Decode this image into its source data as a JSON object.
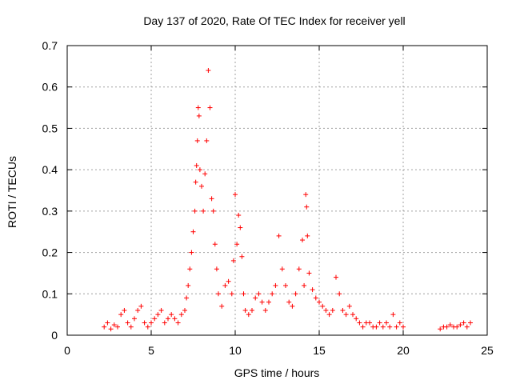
{
  "chart_data": {
    "type": "scatter",
    "title": "Day 137 of 2020, Rate Of TEC Index for receiver yell",
    "xlabel": "GPS time / hours",
    "ylabel": "ROTI / TECUs",
    "xlim": [
      0,
      25
    ],
    "ylim": [
      0,
      0.7
    ],
    "xticks": [
      0,
      5,
      10,
      15,
      20,
      25
    ],
    "yticks": [
      0,
      0.1,
      0.2,
      0.3,
      0.4,
      0.5,
      0.6,
      0.7
    ],
    "grid": true,
    "legend": "none",
    "marker": "+",
    "color": "#ff0000",
    "series": [
      {
        "values": [
          [
            2.2,
            0.02
          ],
          [
            2.4,
            0.03
          ],
          [
            2.6,
            0.015
          ],
          [
            2.8,
            0.025
          ],
          [
            3.0,
            0.02
          ],
          [
            3.2,
            0.05
          ],
          [
            3.4,
            0.06
          ],
          [
            3.6,
            0.03
          ],
          [
            3.8,
            0.02
          ],
          [
            4.0,
            0.04
          ],
          [
            4.2,
            0.06
          ],
          [
            4.4,
            0.07
          ],
          [
            4.6,
            0.03
          ],
          [
            4.8,
            0.02
          ],
          [
            5.0,
            0.03
          ],
          [
            5.2,
            0.04
          ],
          [
            5.4,
            0.05
          ],
          [
            5.6,
            0.06
          ],
          [
            5.8,
            0.03
          ],
          [
            6.0,
            0.04
          ],
          [
            6.2,
            0.05
          ],
          [
            6.4,
            0.04
          ],
          [
            6.6,
            0.03
          ],
          [
            6.8,
            0.05
          ],
          [
            7.0,
            0.06
          ],
          [
            7.1,
            0.09
          ],
          [
            7.2,
            0.12
          ],
          [
            7.3,
            0.16
          ],
          [
            7.4,
            0.2
          ],
          [
            7.5,
            0.25
          ],
          [
            7.6,
            0.3
          ],
          [
            7.65,
            0.37
          ],
          [
            7.7,
            0.41
          ],
          [
            7.75,
            0.47
          ],
          [
            7.8,
            0.55
          ],
          [
            7.85,
            0.53
          ],
          [
            7.9,
            0.4
          ],
          [
            8.0,
            0.36
          ],
          [
            8.1,
            0.3
          ],
          [
            8.2,
            0.39
          ],
          [
            8.3,
            0.47
          ],
          [
            8.4,
            0.64
          ],
          [
            8.5,
            0.55
          ],
          [
            8.6,
            0.33
          ],
          [
            8.7,
            0.3
          ],
          [
            8.8,
            0.22
          ],
          [
            8.9,
            0.16
          ],
          [
            9.0,
            0.1
          ],
          [
            9.2,
            0.07
          ],
          [
            9.4,
            0.12
          ],
          [
            9.6,
            0.13
          ],
          [
            9.8,
            0.1
          ],
          [
            9.9,
            0.18
          ],
          [
            10.0,
            0.34
          ],
          [
            10.1,
            0.22
          ],
          [
            10.2,
            0.29
          ],
          [
            10.3,
            0.26
          ],
          [
            10.4,
            0.19
          ],
          [
            10.5,
            0.1
          ],
          [
            10.6,
            0.06
          ],
          [
            10.8,
            0.05
          ],
          [
            11.0,
            0.06
          ],
          [
            11.2,
            0.09
          ],
          [
            11.4,
            0.1
          ],
          [
            11.6,
            0.08
          ],
          [
            11.8,
            0.06
          ],
          [
            12.0,
            0.08
          ],
          [
            12.2,
            0.1
          ],
          [
            12.4,
            0.12
          ],
          [
            12.6,
            0.24
          ],
          [
            12.8,
            0.16
          ],
          [
            13.0,
            0.12
          ],
          [
            13.2,
            0.08
          ],
          [
            13.4,
            0.07
          ],
          [
            13.6,
            0.1
          ],
          [
            13.8,
            0.16
          ],
          [
            14.0,
            0.23
          ],
          [
            14.1,
            0.12
          ],
          [
            14.2,
            0.34
          ],
          [
            14.25,
            0.31
          ],
          [
            14.3,
            0.24
          ],
          [
            14.4,
            0.15
          ],
          [
            14.6,
            0.11
          ],
          [
            14.8,
            0.09
          ],
          [
            15.0,
            0.08
          ],
          [
            15.2,
            0.07
          ],
          [
            15.4,
            0.06
          ],
          [
            15.6,
            0.05
          ],
          [
            15.8,
            0.06
          ],
          [
            16.0,
            0.14
          ],
          [
            16.2,
            0.1
          ],
          [
            16.4,
            0.06
          ],
          [
            16.6,
            0.05
          ],
          [
            16.8,
            0.07
          ],
          [
            17.0,
            0.05
          ],
          [
            17.2,
            0.04
          ],
          [
            17.4,
            0.03
          ],
          [
            17.6,
            0.02
          ],
          [
            17.8,
            0.03
          ],
          [
            18.0,
            0.03
          ],
          [
            18.2,
            0.02
          ],
          [
            18.4,
            0.02
          ],
          [
            18.6,
            0.03
          ],
          [
            18.8,
            0.02
          ],
          [
            19.0,
            0.03
          ],
          [
            19.2,
            0.02
          ],
          [
            19.4,
            0.05
          ],
          [
            19.6,
            0.02
          ],
          [
            19.8,
            0.03
          ],
          [
            20.0,
            0.02
          ],
          [
            22.2,
            0.015
          ],
          [
            22.4,
            0.02
          ],
          [
            22.6,
            0.02
          ],
          [
            22.8,
            0.025
          ],
          [
            23.0,
            0.02
          ],
          [
            23.2,
            0.02
          ],
          [
            23.4,
            0.025
          ],
          [
            23.6,
            0.03
          ],
          [
            23.8,
            0.02
          ],
          [
            24.0,
            0.03
          ]
        ]
      }
    ]
  }
}
